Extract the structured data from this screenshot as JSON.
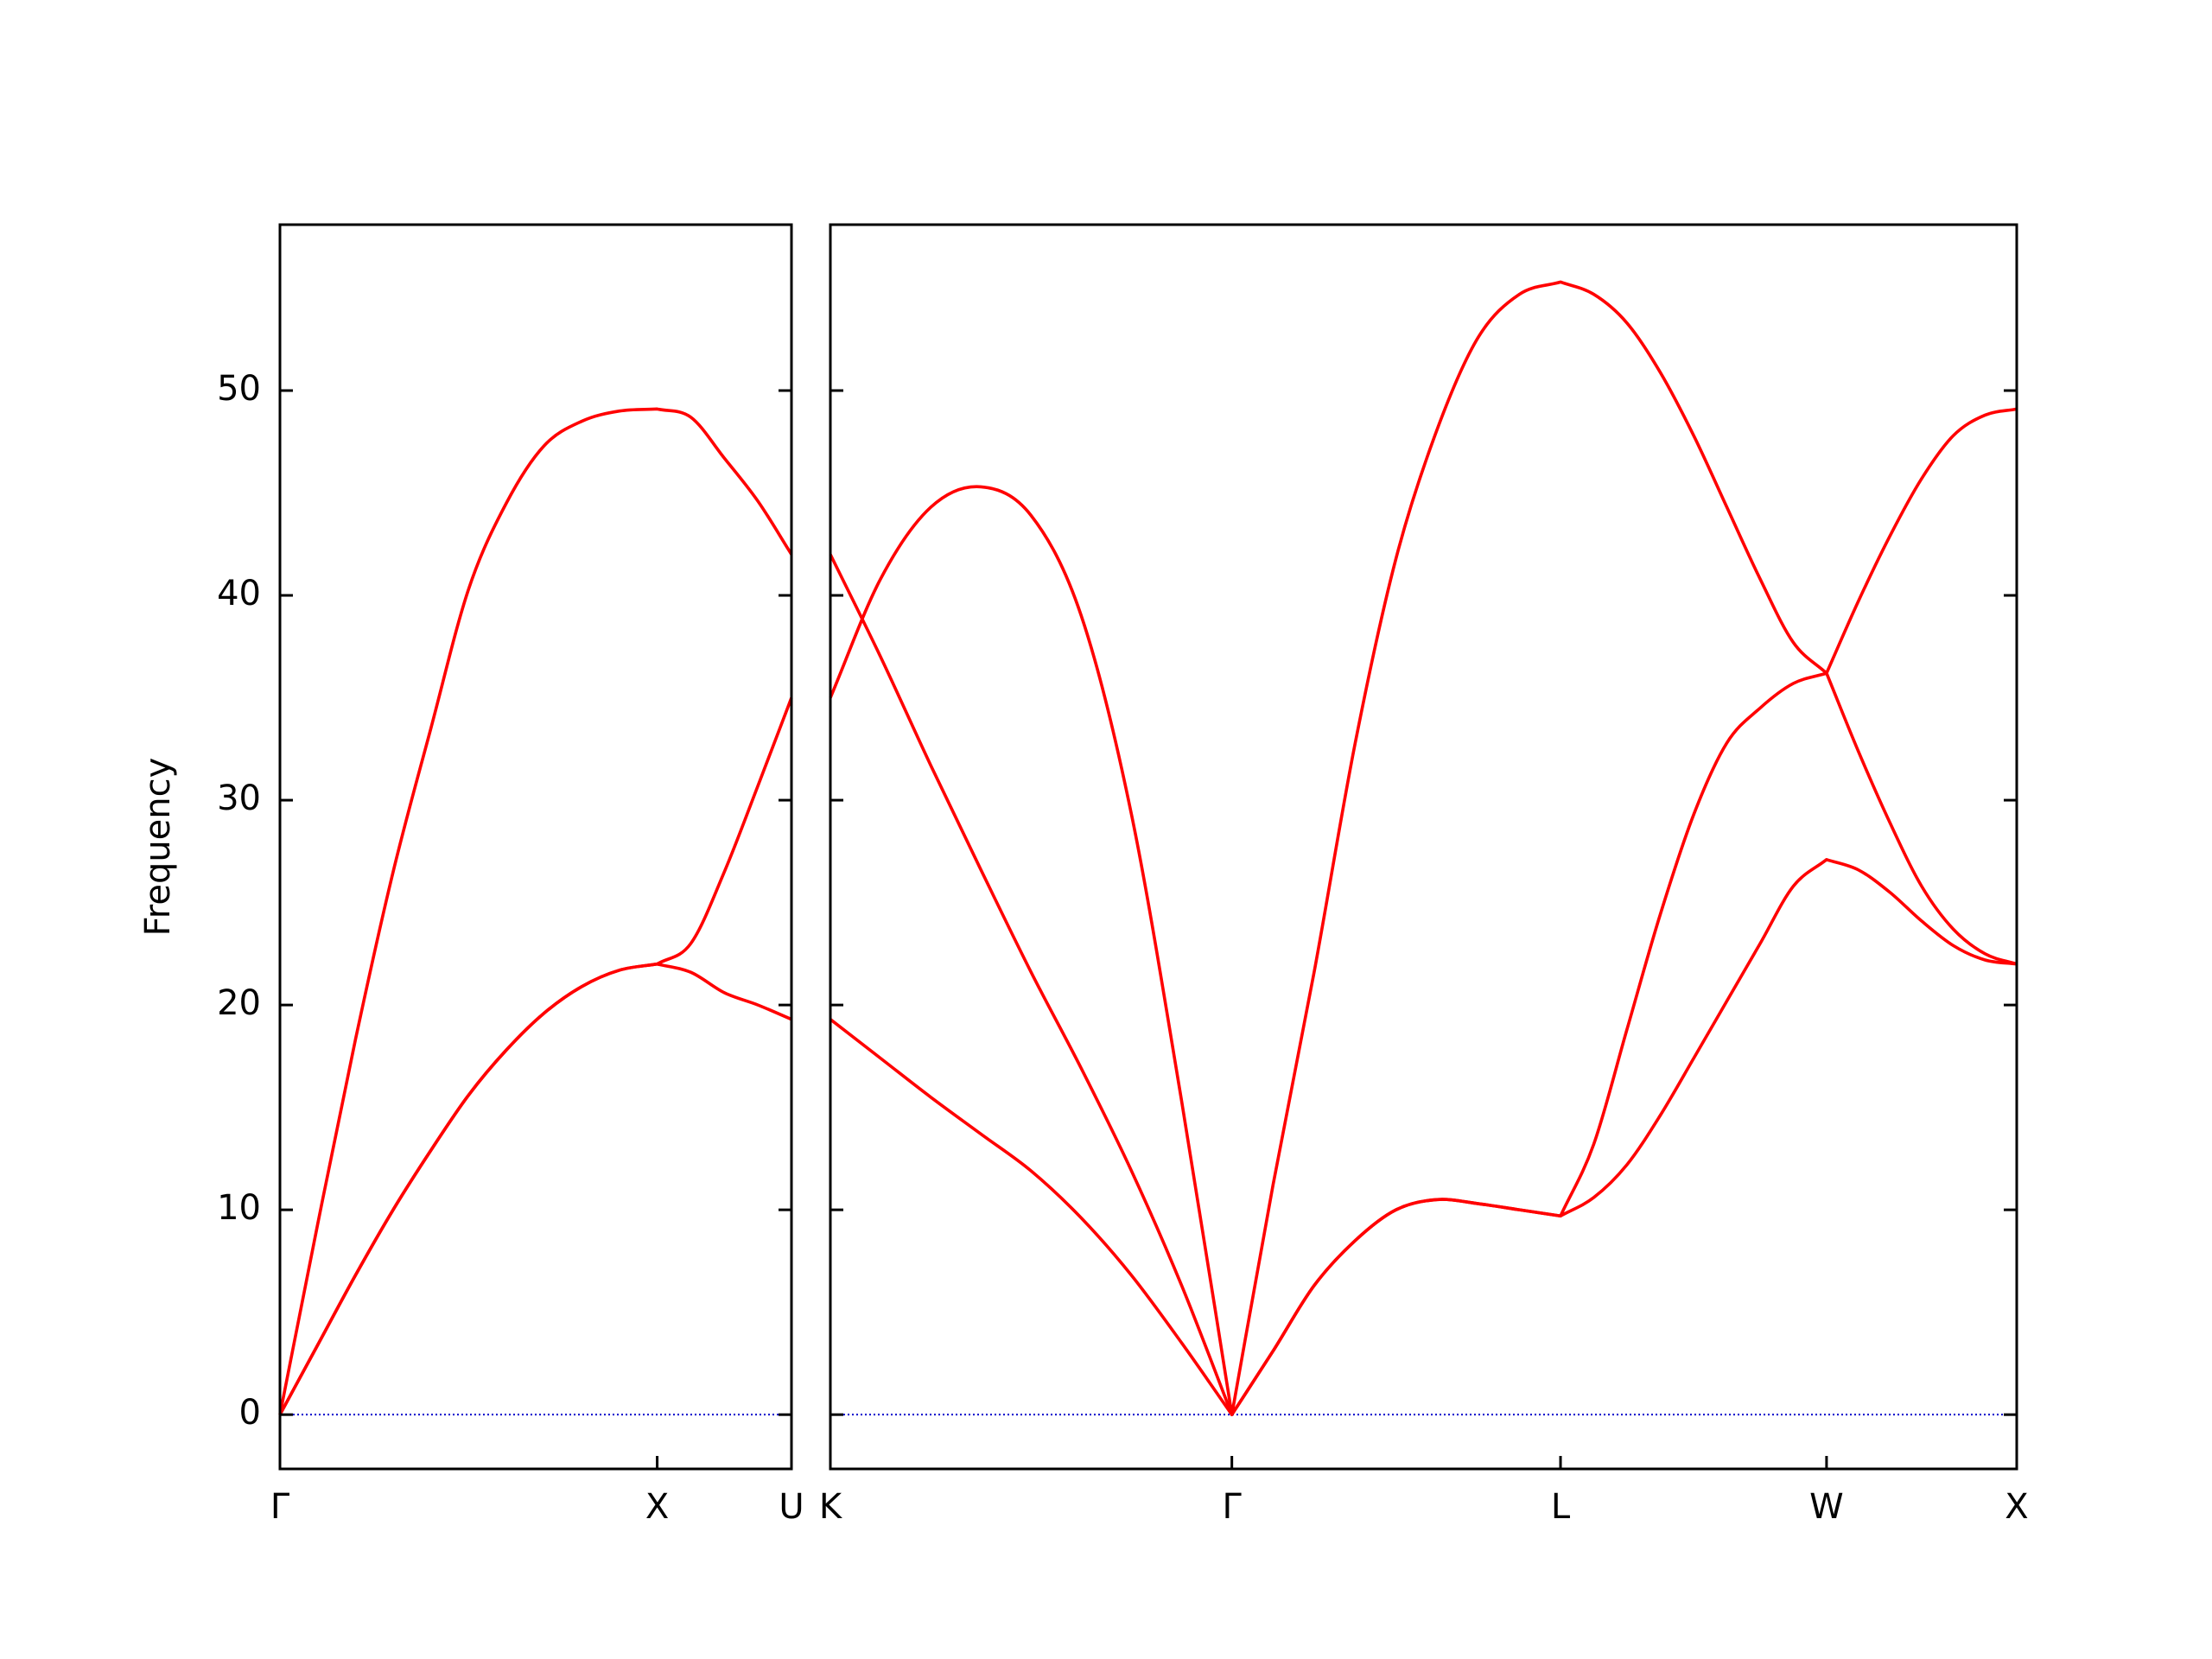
{
  "chart_data": [
    {
      "type": "line",
      "ylabel": "Frequency",
      "x": [
        0,
        0.1,
        0.2,
        0.3,
        0.4,
        0.5,
        0.6,
        0.7,
        0.8,
        0.9,
        1.0,
        1.089,
        1.178,
        1.267,
        1.356
      ],
      "series": [
        {
          "color": "#ff0000",
          "values": [
            0,
            3.4,
            6.8,
            10.0,
            12.9,
            15.6,
            17.8,
            19.6,
            20.9,
            21.7,
            22.0,
            21.6,
            20.6,
            20.0,
            19.3
          ]
        },
        {
          "color": "#ff0000",
          "values": [
            0,
            3.4,
            6.8,
            10.0,
            12.9,
            15.6,
            17.8,
            19.6,
            20.9,
            21.7,
            22.0,
            23.0,
            26.5,
            30.7,
            35.0
          ]
        },
        {
          "color": "#ff0000",
          "values": [
            0,
            9.3,
            18.3,
            26.5,
            33.5,
            40.3,
            44.5,
            47.3,
            48.5,
            49.0,
            49.1,
            48.7,
            46.7,
            44.6,
            42.0
          ]
        }
      ],
      "xlim": [
        0,
        1.356
      ],
      "xticks": [
        {
          "value": 0,
          "label": "Γ"
        },
        {
          "value": 1.0,
          "label": "X"
        },
        {
          "value": 1.356,
          "label": "U"
        }
      ],
      "ylim": [
        -2.65,
        58.1
      ],
      "yticks": [
        0,
        10,
        20,
        30,
        40,
        50
      ],
      "ytick_labels": true,
      "hline": 0,
      "hline_color": "#0000cc"
    },
    {
      "type": "line",
      "x": [
        1.356,
        1.489,
        1.622,
        1.755,
        1.888,
        2.021,
        2.154,
        2.287,
        2.42,
        2.529,
        2.638,
        2.747,
        2.855,
        2.964,
        3.073,
        3.182,
        3.291,
        3.379,
        3.467,
        3.555,
        3.644,
        3.732,
        3.82,
        3.908,
        3.996,
        4.08,
        4.164,
        4.248,
        4.332,
        4.416,
        4.5
      ],
      "series": [
        {
          "color": "#ff0000",
          "values": [
            19.3,
            17.4,
            15.5,
            13.7,
            11.9,
            9.6,
            6.8,
            3.5,
            0,
            3.1,
            6.3,
            8.5,
            10.0,
            10.5,
            10.3,
            10.0,
            9.7,
            10.6,
            12.2,
            14.6,
            17.4,
            20.2,
            23.0,
            25.8,
            27.1,
            26.6,
            25.5,
            24.1,
            22.9,
            22.2,
            22.0
          ]
        },
        {
          "color": "#ff0000",
          "values": [
            42.0,
            37.0,
            31.7,
            26.6,
            21.6,
            16.9,
            11.9,
            6.3,
            0,
            3.1,
            6.3,
            8.5,
            10.0,
            10.5,
            10.3,
            10.0,
            9.7,
            13.2,
            18.8,
            24.4,
            29.3,
            32.8,
            34.5,
            35.7,
            36.2,
            32.4,
            28.9,
            25.8,
            23.7,
            22.5,
            22.0
          ]
        },
        {
          "color": "#ff0000",
          "values": [
            35.0,
            40.8,
            44.3,
            45.3,
            43.9,
            39.0,
            29.3,
            15.3,
            0,
            11.2,
            21.6,
            32.8,
            41.8,
            48.1,
            52.6,
            54.7,
            55.3,
            54.7,
            53.3,
            50.9,
            47.8,
            44.3,
            40.8,
            37.7,
            36.2,
            39.7,
            42.9,
            45.7,
            47.8,
            48.8,
            49.1
          ]
        }
      ],
      "xlim": [
        1.356,
        4.5
      ],
      "xticks": [
        {
          "value": 1.356,
          "label": "K"
        },
        {
          "value": 2.42,
          "label": "Γ"
        },
        {
          "value": 3.291,
          "label": "L"
        },
        {
          "value": 3.996,
          "label": "W"
        },
        {
          "value": 4.5,
          "label": "X"
        }
      ],
      "ylim": [
        -2.65,
        58.1
      ],
      "yticks": [
        0,
        10,
        20,
        30,
        40,
        50
      ],
      "ytick_labels": false,
      "hline": 0,
      "hline_color": "#0000cc"
    }
  ]
}
